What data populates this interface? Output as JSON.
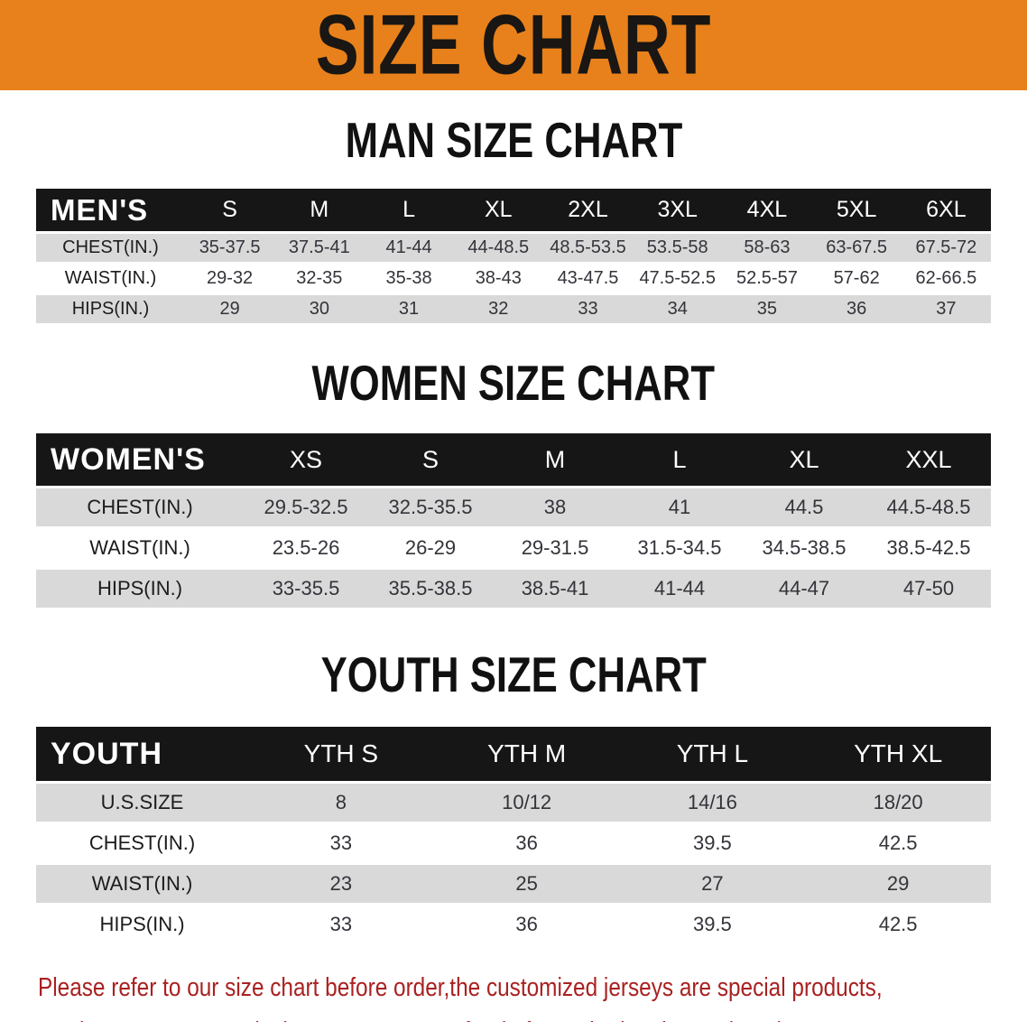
{
  "colors": {
    "banner-bg": "#e8811b",
    "banner-text": "#191613",
    "table-header-bg": "#161616",
    "table-header-text": "#ffffff",
    "row-stripe": "#d9d9d9",
    "row-text": "#33343a",
    "disclaimer-text": "#a92121"
  },
  "banner": {
    "title": "SIZE CHART"
  },
  "sections": [
    {
      "id": "men",
      "heading": "MAN SIZE CHART",
      "table": {
        "header_label": "MEN'S",
        "columns": [
          "S",
          "M",
          "L",
          "XL",
          "2XL",
          "3XL",
          "4XL",
          "5XL",
          "6XL"
        ],
        "rows": [
          {
            "label": "CHEST(IN.)",
            "values": [
              "35-37.5",
              "37.5-41",
              "41-44",
              "44-48.5",
              "48.5-53.5",
              "53.5-58",
              "58-63",
              "63-67.5",
              "67.5-72"
            ]
          },
          {
            "label": "WAIST(IN.)",
            "values": [
              "29-32",
              "32-35",
              "35-38",
              "38-43",
              "43-47.5",
              "47.5-52.5",
              "52.5-57",
              "57-62",
              "62-66.5"
            ]
          },
          {
            "label": "HIPS(IN.)",
            "values": [
              "29",
              "30",
              "31",
              "32",
              "33",
              "34",
              "35",
              "36",
              "37"
            ]
          }
        ]
      }
    },
    {
      "id": "women",
      "heading": "WOMEN SIZE CHART",
      "table": {
        "header_label": "WOMEN'S",
        "columns": [
          "XS",
          "S",
          "M",
          "L",
          "XL",
          "XXL"
        ],
        "rows": [
          {
            "label": "CHEST(IN.)",
            "values": [
              "29.5-32.5",
              "32.5-35.5",
              "38",
              "41",
              "44.5",
              "44.5-48.5"
            ]
          },
          {
            "label": "WAIST(IN.)",
            "values": [
              "23.5-26",
              "26-29",
              "29-31.5",
              "31.5-34.5",
              "34.5-38.5",
              "38.5-42.5"
            ]
          },
          {
            "label": "HIPS(IN.)",
            "values": [
              "33-35.5",
              "35.5-38.5",
              "38.5-41",
              "41-44",
              "44-47",
              "47-50"
            ]
          }
        ]
      }
    },
    {
      "id": "youth",
      "heading": "YOUTH SIZE CHART",
      "table": {
        "header_label": "YOUTH",
        "columns": [
          "YTH S",
          "YTH M",
          "YTH L",
          "YTH XL"
        ],
        "rows": [
          {
            "label": "U.S.SIZE",
            "values": [
              "8",
              "10/12",
              "14/16",
              "18/20"
            ]
          },
          {
            "label": "CHEST(IN.)",
            "values": [
              "33",
              "36",
              "39.5",
              "42.5"
            ]
          },
          {
            "label": "WAIST(IN.)",
            "values": [
              "23",
              "25",
              "27",
              "29"
            ]
          },
          {
            "label": "HIPS(IN.)",
            "values": [
              "33",
              "36",
              "39.5",
              "42.5"
            ]
          }
        ]
      }
    }
  ],
  "disclaimer": {
    "line1": "Please refer to our size chart before order,the customized jerseys are special products,",
    "line2": "we don't accept cancel, change, teturn or refund after order has been placed!"
  }
}
